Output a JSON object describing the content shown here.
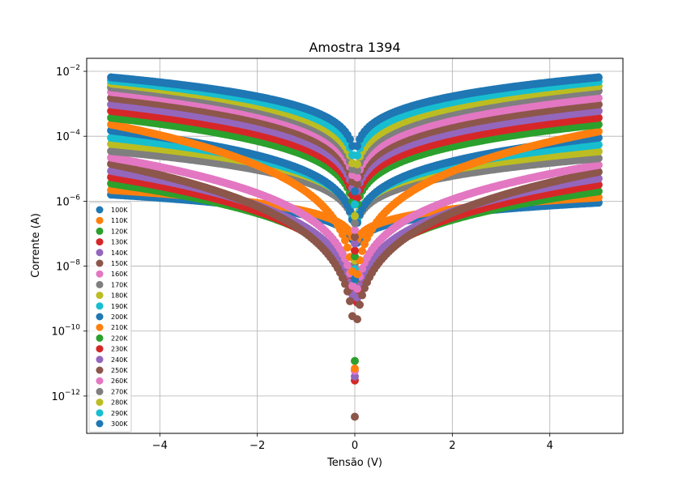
{
  "chart_data": {
    "type": "scatter",
    "title": "Amostra 1394",
    "xlabel": "Tensão (V)",
    "ylabel": "Corrente (A)",
    "yscale": "log",
    "xlim": [
      -5.5,
      5.5
    ],
    "ylim_log10": [
      -13.15,
      -1.6
    ],
    "grid": true,
    "legend_position": "lower-left",
    "x_ticks": [
      -4,
      -2,
      0,
      2,
      4
    ],
    "x_tick_labels": [
      "−4",
      "−2",
      "0",
      "2",
      "4"
    ],
    "y_ticks_log10": [
      -2,
      -4,
      -6,
      -8,
      -10,
      -12
    ],
    "y_tick_labels": [
      {
        "base": "10",
        "exp": "−2"
      },
      {
        "base": "10",
        "exp": "−4"
      },
      {
        "base": "10",
        "exp": "−6"
      },
      {
        "base": "10",
        "exp": "−8"
      },
      {
        "base": "10",
        "exp": "−10"
      },
      {
        "base": "10",
        "exp": "−12"
      }
    ],
    "voltage_sweep": {
      "from": -5,
      "to": 5,
      "step": 0.05
    },
    "series": [
      {
        "name": "100K",
        "color": "#1f77b4",
        "i_neg5V": 1.6e-06,
        "i_pos5V": 9e-07,
        "i_min": 8e-09
      },
      {
        "name": "110K",
        "color": "#ff7f0e",
        "i_neg5V": 2.2e-06,
        "i_pos5V": 1.3e-06,
        "i_min": 9e-09
      },
      {
        "name": "120K",
        "color": "#2ca02c",
        "i_neg5V": 3.5e-06,
        "i_pos5V": 2e-06,
        "i_min": 1.2e-11
      },
      {
        "name": "130K",
        "color": "#d62728",
        "i_neg5V": 5.5e-06,
        "i_pos5V": 3.2e-06,
        "i_min": 3e-12
      },
      {
        "name": "140K",
        "color": "#9467bd",
        "i_neg5V": 8.5e-06,
        "i_pos5V": 5e-06,
        "i_min": 4e-12
      },
      {
        "name": "150K",
        "color": "#8c564b",
        "i_neg5V": 1.4e-05,
        "i_pos5V": 8e-06,
        "i_min": 2.3e-13
      },
      {
        "name": "160K",
        "color": "#e377c2",
        "i_neg5V": 2.2e-05,
        "i_pos5V": 1.3e-05,
        "i_min": 6e-12
      },
      {
        "name": "170K",
        "color": "#7f7f7f",
        "i_neg5V": 3.5e-05,
        "i_pos5V": 2.1e-05,
        "i_min": 1.2e-08
      },
      {
        "name": "180K",
        "color": "#bcbd22",
        "i_neg5V": 5.8e-05,
        "i_pos5V": 3.4e-05,
        "i_min": 1.5e-08
      },
      {
        "name": "190K",
        "color": "#17becf",
        "i_neg5V": 9e-05,
        "i_pos5V": 5.5e-05,
        "i_min": 8e-09
      },
      {
        "name": "200K",
        "color": "#1f77b4",
        "i_neg5V": 0.00015,
        "i_pos5V": 9e-05,
        "i_min": 4e-09
      },
      {
        "name": "210K",
        "color": "#ff7f0e",
        "i_neg5V": 0.00023,
        "i_pos5V": 0.00014,
        "i_min": 7e-12
      },
      {
        "name": "220K",
        "color": "#2ca02c",
        "i_neg5V": 0.00037,
        "i_pos5V": 0.00023,
        "i_min": 2e-08
      },
      {
        "name": "230K",
        "color": "#d62728",
        "i_neg5V": 0.0006,
        "i_pos5V": 0.00037,
        "i_min": 3e-08
      },
      {
        "name": "240K",
        "color": "#9467bd",
        "i_neg5V": 0.00095,
        "i_pos5V": 0.0006,
        "i_min": 5e-08
      },
      {
        "name": "250K",
        "color": "#8c564b",
        "i_neg5V": 0.0015,
        "i_pos5V": 0.00095,
        "i_min": 8e-08
      },
      {
        "name": "260K",
        "color": "#e377c2",
        "i_neg5V": 0.0023,
        "i_pos5V": 0.0015,
        "i_min": 1.3e-07
      },
      {
        "name": "270K",
        "color": "#7f7f7f",
        "i_neg5V": 0.0032,
        "i_pos5V": 0.0025,
        "i_min": 2.1e-07
      },
      {
        "name": "280K",
        "color": "#bcbd22",
        "i_neg5V": 0.0042,
        "i_pos5V": 0.0035,
        "i_min": 3.5e-07
      },
      {
        "name": "290K",
        "color": "#17becf",
        "i_neg5V": 0.0052,
        "i_pos5V": 0.0048,
        "i_min": 8e-07
      },
      {
        "name": "300K",
        "color": "#1f77b4",
        "i_neg5V": 0.0065,
        "i_pos5V": 0.0065,
        "i_min": 2e-06
      }
    ]
  }
}
